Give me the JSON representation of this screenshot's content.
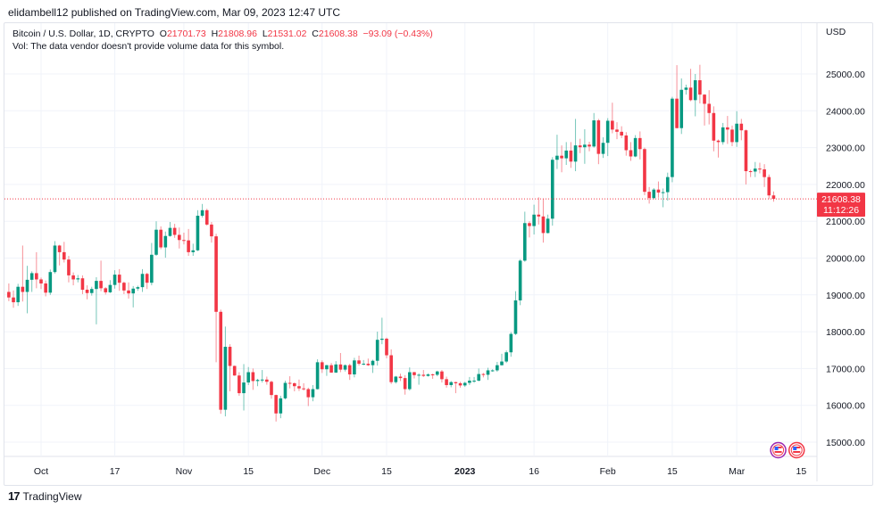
{
  "publisher_line": "elidambell12 published on TradingView.com, Mar 09, 2023 12:47 UTC",
  "legend": {
    "symbol": "Bitcoin / U.S. Dollar, 1D, CRYPTO",
    "o_label": "O",
    "o": "21701.73",
    "h_label": "H",
    "h": "21808.96",
    "l_label": "L",
    "l": "21531.02",
    "c_label": "C",
    "c": "21608.38",
    "change": "−93.09 (−0.43%)",
    "vol_note": "Vol: The data vendor doesn't provide volume data for this symbol."
  },
  "footer": {
    "brand": "TradingView",
    "logo_text": "17"
  },
  "colors": {
    "up": "#089981",
    "down": "#f23645",
    "grid": "#f0f3fa",
    "text": "#131722"
  },
  "chart_data": {
    "type": "candlestick",
    "title": "Bitcoin / U.S. Dollar, 1D, CRYPTO",
    "currency_label": "USD",
    "ylim": [
      14700,
      26000
    ],
    "y_ticks": [
      "15000.00",
      "16000.00",
      "17000.00",
      "18000.00",
      "19000.00",
      "20000.00",
      "21000.00",
      "22000.00",
      "23000.00",
      "24000.00",
      "25000.00"
    ],
    "x_ticks": [
      {
        "label": "Oct",
        "date": "2022-10-01",
        "bold": false
      },
      {
        "label": "17",
        "date": "2022-10-17",
        "bold": false
      },
      {
        "label": "Nov",
        "date": "2022-11-01",
        "bold": false
      },
      {
        "label": "15",
        "date": "2022-11-15",
        "bold": false
      },
      {
        "label": "Dec",
        "date": "2022-12-01",
        "bold": false
      },
      {
        "label": "15",
        "date": "2022-12-15",
        "bold": false
      },
      {
        "label": "2023",
        "date": "2023-01-01",
        "bold": true
      },
      {
        "label": "16",
        "date": "2023-01-16",
        "bold": false
      },
      {
        "label": "Feb",
        "date": "2023-02-01",
        "bold": false
      },
      {
        "label": "15",
        "date": "2023-02-15",
        "bold": false
      },
      {
        "label": "Mar",
        "date": "2023-03-01",
        "bold": false
      },
      {
        "label": "15",
        "date": "2023-03-15",
        "bold": false
      }
    ],
    "last_price": {
      "value": 21608.38,
      "label": "21608.38",
      "countdown": "11:12:26"
    },
    "grid": true,
    "events": [
      {
        "icon": "us-flag-icon",
        "date": "2023-03-10"
      },
      {
        "icon": "us-flag-icon",
        "date": "2023-03-14"
      }
    ],
    "candles": [
      [
        "2022-09-24",
        19080,
        19310,
        18830,
        18930
      ],
      [
        "2022-09-25",
        18930,
        19120,
        18650,
        18800
      ],
      [
        "2022-09-26",
        18800,
        19300,
        18700,
        19220
      ],
      [
        "2022-09-27",
        19220,
        20340,
        18820,
        19080
      ],
      [
        "2022-09-28",
        19080,
        19790,
        18500,
        19410
      ],
      [
        "2022-09-29",
        19410,
        19640,
        19080,
        19590
      ],
      [
        "2022-09-30",
        19590,
        20160,
        19180,
        19420
      ],
      [
        "2022-10-01",
        19420,
        19470,
        19160,
        19310
      ],
      [
        "2022-10-02",
        19310,
        19390,
        18960,
        19060
      ],
      [
        "2022-10-03",
        19060,
        19690,
        19000,
        19620
      ],
      [
        "2022-10-04",
        19620,
        20460,
        19580,
        20340
      ],
      [
        "2022-10-05",
        20340,
        20360,
        19800,
        20160
      ],
      [
        "2022-10-06",
        20160,
        20440,
        19880,
        19960
      ],
      [
        "2022-10-07",
        19960,
        20060,
        19340,
        19530
      ],
      [
        "2022-10-08",
        19530,
        19610,
        19260,
        19420
      ],
      [
        "2022-10-09",
        19420,
        19540,
        19340,
        19450
      ],
      [
        "2022-10-10",
        19450,
        19530,
        19020,
        19140
      ],
      [
        "2022-10-11",
        19140,
        19260,
        18880,
        19050
      ],
      [
        "2022-10-12",
        19050,
        19220,
        18980,
        19160
      ],
      [
        "2022-10-13",
        19160,
        19480,
        18200,
        19380
      ],
      [
        "2022-10-14",
        19380,
        19930,
        19100,
        19180
      ],
      [
        "2022-10-15",
        19180,
        19210,
        19010,
        19070
      ],
      [
        "2022-10-16",
        19070,
        19400,
        19050,
        19270
      ],
      [
        "2022-10-17",
        19270,
        19670,
        19170,
        19550
      ],
      [
        "2022-10-18",
        19550,
        19700,
        19110,
        19330
      ],
      [
        "2022-10-19",
        19330,
        19360,
        19020,
        19120
      ],
      [
        "2022-10-20",
        19120,
        19340,
        18900,
        19040
      ],
      [
        "2022-10-21",
        19040,
        19240,
        18660,
        19170
      ],
      [
        "2022-10-22",
        19170,
        19250,
        19110,
        19210
      ],
      [
        "2022-10-23",
        19210,
        19700,
        19080,
        19570
      ],
      [
        "2022-10-24",
        19570,
        19600,
        19160,
        19330
      ],
      [
        "2022-10-25",
        19330,
        20410,
        19260,
        20090
      ],
      [
        "2022-10-26",
        20090,
        21000,
        20060,
        20770
      ],
      [
        "2022-10-27",
        20770,
        20860,
        20240,
        20290
      ],
      [
        "2022-10-28",
        20290,
        20720,
        20010,
        20600
      ],
      [
        "2022-10-29",
        20600,
        20980,
        20580,
        20820
      ],
      [
        "2022-10-30",
        20820,
        20930,
        20550,
        20630
      ],
      [
        "2022-10-31",
        20630,
        20830,
        20260,
        20490
      ],
      [
        "2022-11-01",
        20490,
        20690,
        20370,
        20480
      ],
      [
        "2022-11-02",
        20480,
        20790,
        20060,
        20160
      ],
      [
        "2022-11-03",
        20160,
        20390,
        20060,
        20210
      ],
      [
        "2022-11-04",
        20210,
        21300,
        20190,
        21150
      ],
      [
        "2022-11-05",
        21150,
        21470,
        21100,
        21300
      ],
      [
        "2022-11-06",
        21300,
        21340,
        20880,
        20910
      ],
      [
        "2022-11-07",
        20910,
        20980,
        20420,
        20590
      ],
      [
        "2022-11-08",
        20590,
        20660,
        17170,
        18540
      ],
      [
        "2022-11-09",
        18540,
        18600,
        15770,
        15880
      ],
      [
        "2022-11-10",
        15880,
        18140,
        15700,
        17590
      ],
      [
        "2022-11-11",
        17590,
        17660,
        16380,
        17070
      ],
      [
        "2022-11-12",
        17070,
        17080,
        16800,
        16810
      ],
      [
        "2022-11-13",
        16810,
        16900,
        16260,
        16330
      ],
      [
        "2022-11-14",
        16330,
        17120,
        15860,
        16620
      ],
      [
        "2022-11-15",
        16620,
        17040,
        16550,
        16900
      ],
      [
        "2022-11-16",
        16900,
        17000,
        16420,
        16660
      ],
      [
        "2022-11-17",
        16660,
        16720,
        16520,
        16690
      ],
      [
        "2022-11-18",
        16690,
        16960,
        16620,
        16700
      ],
      [
        "2022-11-19",
        16700,
        16780,
        16560,
        16640
      ],
      [
        "2022-11-20",
        16640,
        16670,
        16180,
        16280
      ],
      [
        "2022-11-21",
        16280,
        16290,
        15560,
        15780
      ],
      [
        "2022-11-22",
        15780,
        16260,
        15650,
        16190
      ],
      [
        "2022-11-23",
        16190,
        16670,
        16160,
        16610
      ],
      [
        "2022-11-24",
        16610,
        16790,
        16460,
        16600
      ],
      [
        "2022-11-25",
        16600,
        16620,
        16380,
        16520
      ],
      [
        "2022-11-26",
        16520,
        16700,
        16390,
        16460
      ],
      [
        "2022-11-27",
        16460,
        16600,
        16400,
        16440
      ],
      [
        "2022-11-28",
        16440,
        16480,
        15980,
        16220
      ],
      [
        "2022-11-29",
        16220,
        16550,
        16110,
        16440
      ],
      [
        "2022-11-30",
        16440,
        17250,
        16430,
        17170
      ],
      [
        "2022-12-01",
        17170,
        17220,
        16880,
        16980
      ],
      [
        "2022-12-02",
        16980,
        17100,
        16800,
        17090
      ],
      [
        "2022-12-03",
        17090,
        17150,
        16880,
        16890
      ],
      [
        "2022-12-04",
        16890,
        17200,
        16880,
        17110
      ],
      [
        "2022-12-05",
        17110,
        17420,
        16900,
        16970
      ],
      [
        "2022-12-06",
        16970,
        17110,
        16920,
        17090
      ],
      [
        "2022-12-07",
        17090,
        17130,
        16690,
        16840
      ],
      [
        "2022-12-08",
        16840,
        17290,
        16760,
        17220
      ],
      [
        "2022-12-09",
        17220,
        17350,
        17080,
        17130
      ],
      [
        "2022-12-10",
        17130,
        17230,
        17090,
        17130
      ],
      [
        "2022-12-11",
        17130,
        17270,
        17070,
        17090
      ],
      [
        "2022-12-12",
        17090,
        17240,
        16880,
        17210
      ],
      [
        "2022-12-13",
        17210,
        18000,
        17080,
        17780
      ],
      [
        "2022-12-14",
        17780,
        18380,
        17660,
        17810
      ],
      [
        "2022-12-15",
        17810,
        17840,
        17280,
        17360
      ],
      [
        "2022-12-16",
        17360,
        17520,
        16580,
        16630
      ],
      [
        "2022-12-17",
        16630,
        16800,
        16590,
        16780
      ],
      [
        "2022-12-18",
        16780,
        16860,
        16660,
        16740
      ],
      [
        "2022-12-19",
        16740,
        16820,
        16290,
        16440
      ],
      [
        "2022-12-20",
        16440,
        17030,
        16400,
        16900
      ],
      [
        "2022-12-21",
        16900,
        16910,
        16730,
        16820
      ],
      [
        "2022-12-22",
        16820,
        16870,
        16560,
        16830
      ],
      [
        "2022-12-23",
        16830,
        16960,
        16770,
        16800
      ],
      [
        "2022-12-24",
        16800,
        16870,
        16780,
        16840
      ],
      [
        "2022-12-25",
        16840,
        16860,
        16720,
        16830
      ],
      [
        "2022-12-26",
        16830,
        16940,
        16790,
        16920
      ],
      [
        "2022-12-27",
        16920,
        16960,
        16620,
        16710
      ],
      [
        "2022-12-28",
        16710,
        16780,
        16480,
        16550
      ],
      [
        "2022-12-29",
        16550,
        16660,
        16490,
        16630
      ],
      [
        "2022-12-30",
        16630,
        16640,
        16330,
        16600
      ],
      [
        "2022-12-31",
        16600,
        16640,
        16480,
        16540
      ],
      [
        "2023-01-01",
        16540,
        16640,
        16500,
        16610
      ],
      [
        "2023-01-02",
        16610,
        16770,
        16550,
        16670
      ],
      [
        "2023-01-03",
        16670,
        16770,
        16610,
        16670
      ],
      [
        "2023-01-04",
        16670,
        17000,
        16650,
        16850
      ],
      [
        "2023-01-05",
        16850,
        16880,
        16760,
        16830
      ],
      [
        "2023-01-06",
        16830,
        17020,
        16690,
        16950
      ],
      [
        "2023-01-07",
        16950,
        16980,
        16910,
        16950
      ],
      [
        "2023-01-08",
        16950,
        17180,
        16910,
        17090
      ],
      [
        "2023-01-09",
        17090,
        17400,
        17080,
        17190
      ],
      [
        "2023-01-10",
        17190,
        17490,
        17150,
        17440
      ],
      [
        "2023-01-11",
        17440,
        17990,
        17320,
        17940
      ],
      [
        "2023-01-12",
        17940,
        19100,
        17910,
        18850
      ],
      [
        "2023-01-13",
        18850,
        19970,
        18720,
        19930
      ],
      [
        "2023-01-14",
        19930,
        21260,
        19900,
        20950
      ],
      [
        "2023-01-15",
        20950,
        21000,
        20560,
        20870
      ],
      [
        "2023-01-16",
        20870,
        21450,
        20640,
        21180
      ],
      [
        "2023-01-17",
        21180,
        21650,
        20910,
        21130
      ],
      [
        "2023-01-18",
        21130,
        21620,
        20420,
        20680
      ],
      [
        "2023-01-19",
        20680,
        21180,
        20670,
        21070
      ],
      [
        "2023-01-20",
        21070,
        22740,
        20880,
        22670
      ],
      [
        "2023-01-21",
        22670,
        23350,
        22420,
        22780
      ],
      [
        "2023-01-22",
        22780,
        23060,
        22330,
        22710
      ],
      [
        "2023-01-23",
        22710,
        23150,
        22530,
        22920
      ],
      [
        "2023-01-24",
        22920,
        23150,
        22450,
        22620
      ],
      [
        "2023-01-25",
        22620,
        23780,
        22360,
        23060
      ],
      [
        "2023-01-26",
        23060,
        23240,
        22850,
        23010
      ],
      [
        "2023-01-27",
        23010,
        23500,
        22560,
        23080
      ],
      [
        "2023-01-28",
        23080,
        23160,
        22900,
        23030
      ],
      [
        "2023-01-29",
        23030,
        23940,
        23000,
        23740
      ],
      [
        "2023-01-30",
        23740,
        23780,
        22550,
        22830
      ],
      [
        "2023-01-31",
        22830,
        23280,
        22720,
        23130
      ],
      [
        "2023-02-01",
        23130,
        23800,
        22770,
        23730
      ],
      [
        "2023-02-02",
        23730,
        24220,
        23390,
        23490
      ],
      [
        "2023-02-03",
        23490,
        23690,
        23230,
        23430
      ],
      [
        "2023-02-04",
        23430,
        23580,
        23260,
        23330
      ],
      [
        "2023-02-05",
        23330,
        23420,
        22780,
        22930
      ],
      [
        "2023-02-06",
        22930,
        23150,
        22640,
        22760
      ],
      [
        "2023-02-07",
        22760,
        23340,
        22740,
        23260
      ],
      [
        "2023-02-08",
        23260,
        23440,
        22680,
        22960
      ],
      [
        "2023-02-09",
        22960,
        23000,
        21710,
        21800
      ],
      [
        "2023-02-10",
        21800,
        21930,
        21480,
        21630
      ],
      [
        "2023-02-11",
        21630,
        21900,
        21600,
        21860
      ],
      [
        "2023-02-12",
        21860,
        22080,
        21640,
        21780
      ],
      [
        "2023-02-13",
        21780,
        21890,
        21380,
        21790
      ],
      [
        "2023-02-14",
        21790,
        22320,
        21560,
        22200
      ],
      [
        "2023-02-15",
        22200,
        24380,
        22060,
        24330
      ],
      [
        "2023-02-16",
        24330,
        25240,
        23520,
        23530
      ],
      [
        "2023-02-17",
        23530,
        24880,
        23370,
        24570
      ],
      [
        "2023-02-18",
        24570,
        24710,
        24440,
        24630
      ],
      [
        "2023-02-19",
        24630,
        25140,
        24260,
        24290
      ],
      [
        "2023-02-20",
        24290,
        25000,
        23850,
        24830
      ],
      [
        "2023-02-21",
        24830,
        25250,
        24200,
        24440
      ],
      [
        "2023-02-22",
        24440,
        24450,
        23600,
        24190
      ],
      [
        "2023-02-23",
        24190,
        24560,
        23630,
        23940
      ],
      [
        "2023-02-24",
        23940,
        24120,
        22900,
        23190
      ],
      [
        "2023-02-25",
        23190,
        23220,
        22730,
        23150
      ],
      [
        "2023-02-26",
        23150,
        23670,
        23080,
        23550
      ],
      [
        "2023-02-27",
        23550,
        23860,
        23100,
        23490
      ],
      [
        "2023-02-28",
        23490,
        23600,
        23040,
        23150
      ],
      [
        "2023-03-01",
        23150,
        23990,
        23020,
        23650
      ],
      [
        "2023-03-02",
        23650,
        23780,
        23200,
        23470
      ],
      [
        "2023-03-03",
        23470,
        23490,
        22000,
        22360
      ],
      [
        "2023-03-04",
        22360,
        22400,
        22200,
        22350
      ],
      [
        "2023-03-05",
        22350,
        22610,
        22200,
        22430
      ],
      [
        "2023-03-06",
        22430,
        22590,
        22300,
        22410
      ],
      [
        "2023-03-07",
        22410,
        22550,
        21930,
        22200
      ],
      [
        "2023-03-08",
        22200,
        22270,
        21600,
        21701.73
      ],
      [
        "2023-03-09",
        21701.73,
        21808.96,
        21531.02,
        21608.38
      ]
    ]
  }
}
